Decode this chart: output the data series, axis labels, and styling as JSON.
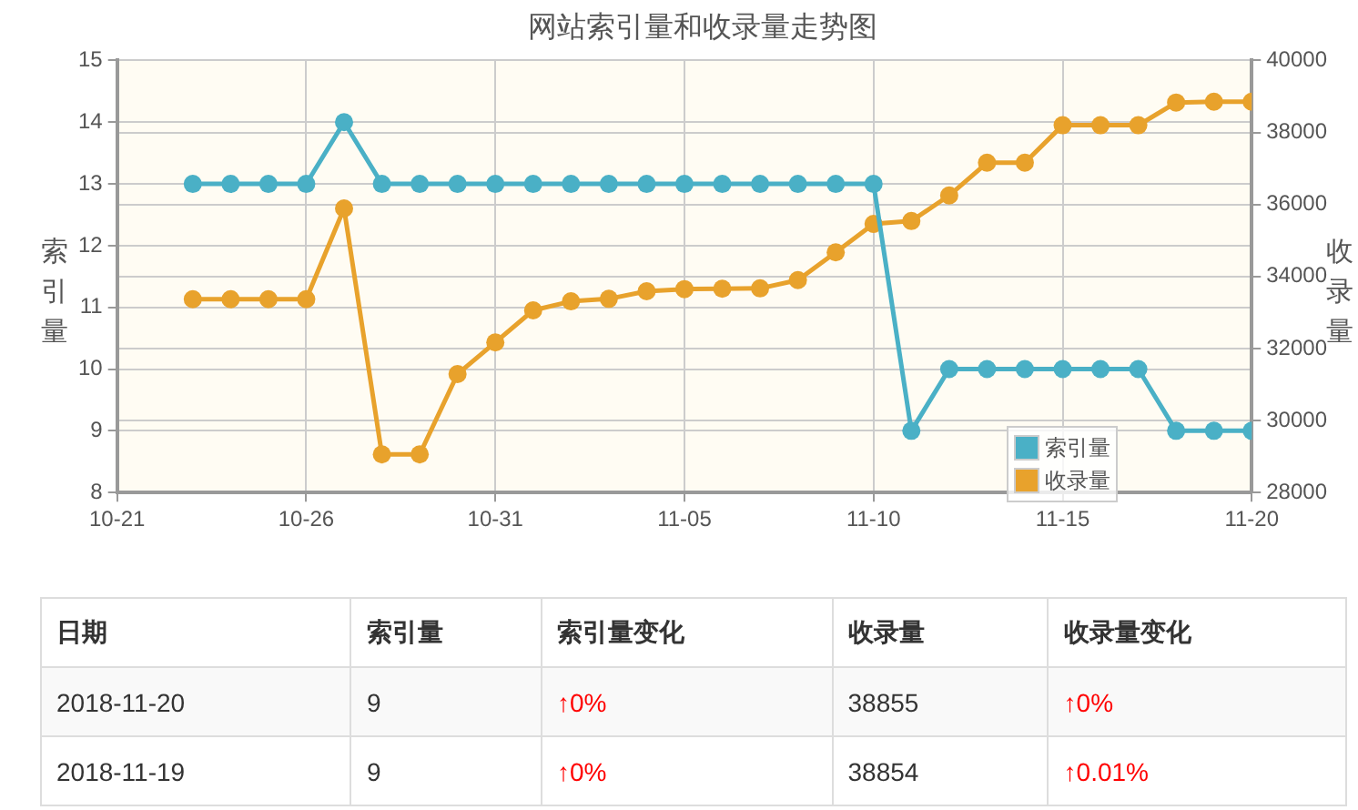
{
  "chart_data": {
    "type": "line",
    "title": "网站索引量和收录量走势图",
    "ylabel": "索引量",
    "y2label": "收录量",
    "x": [
      "2018-10-23",
      "2018-10-24",
      "2018-10-25",
      "2018-10-26",
      "2018-10-27",
      "2018-10-28",
      "2018-10-29",
      "2018-10-30",
      "2018-10-31",
      "2018-11-01",
      "2018-11-02",
      "2018-11-03",
      "2018-11-04",
      "2018-11-05",
      "2018-11-06",
      "2018-11-07",
      "2018-11-08",
      "2018-11-09",
      "2018-11-10",
      "2018-11-11",
      "2018-11-12",
      "2018-11-13",
      "2018-11-14",
      "2018-11-15",
      "2018-11-16",
      "2018-11-17",
      "2018-11-18",
      "2018-11-19",
      "2018-11-20"
    ],
    "series": [
      {
        "name": "索引量",
        "color": "#4ab0c6",
        "values": [
          13,
          13,
          13,
          13,
          14,
          13,
          13,
          13,
          13,
          13,
          13,
          13,
          13,
          13,
          13,
          13,
          13,
          13,
          13,
          9,
          10,
          10,
          10,
          10,
          10,
          10,
          9,
          9,
          9
        ]
      },
      {
        "name": "收录量",
        "color": "#e8a22c",
        "axis": "y2",
        "values": [
          33370,
          33370,
          33370,
          33370,
          35890,
          29060,
          29060,
          31290,
          32170,
          33060,
          33310,
          33380,
          33590,
          33650,
          33660,
          33670,
          33900,
          34670,
          35460,
          35540,
          36250,
          37160,
          37160,
          38200,
          38200,
          38200,
          38830,
          38854,
          38855
        ]
      }
    ],
    "xlim": [
      "2018-10-21",
      "2018-11-20"
    ],
    "xticks": [
      {
        "value": "2018-10-21",
        "label": "10-21"
      },
      {
        "value": "2018-10-26",
        "label": "10-26"
      },
      {
        "value": "2018-10-31",
        "label": "10-31"
      },
      {
        "value": "2018-11-05",
        "label": "11-05"
      },
      {
        "value": "2018-11-10",
        "label": "11-10"
      },
      {
        "value": "2018-11-15",
        "label": "11-15"
      },
      {
        "value": "2018-11-20",
        "label": "11-20"
      }
    ],
    "ylim": [
      8,
      15
    ],
    "yticks": [
      8,
      9,
      10,
      11,
      12,
      13,
      14,
      15
    ],
    "y2lim": [
      28000,
      40000
    ],
    "y2ticks": [
      28000,
      30000,
      32000,
      34000,
      36000,
      38000,
      40000
    ],
    "grid": true,
    "legend": "bottom right",
    "marker": "circle",
    "line_style": "solid",
    "annotations": [
      "日期",
      "索引量",
      "索引量变化",
      "收录量",
      "收录量变化",
      "2018-11-20",
      "9",
      "↑0%",
      "38855",
      "↑0%",
      "2018-11-19",
      "9",
      "↑0%",
      "38854",
      "↑0.01%"
    ]
  }
}
